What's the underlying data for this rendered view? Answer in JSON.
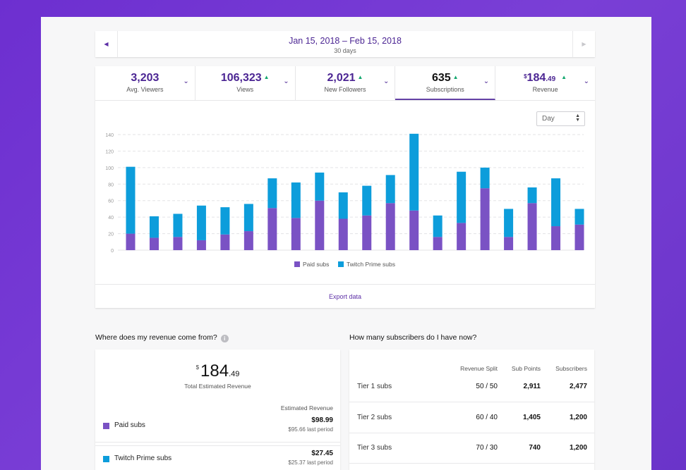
{
  "date_nav": {
    "range": "Jan 15, 2018 – Feb 15, 2018",
    "days": "30 days"
  },
  "metrics": [
    {
      "value": "3,203",
      "label": "Avg. Viewers",
      "up": false
    },
    {
      "value": "106,323",
      "label": "Views",
      "up": true
    },
    {
      "value": "2,021",
      "label": "New Followers",
      "up": true
    },
    {
      "value": "635",
      "label": "Subscriptions",
      "up": true
    },
    {
      "currency": "$",
      "value": "184",
      "cents": ".49",
      "label": "Revenue",
      "up": true
    }
  ],
  "granularity": "Day",
  "chart_data": {
    "type": "bar",
    "stacked": true,
    "ylim": [
      0,
      140
    ],
    "yticks": [
      0,
      20,
      40,
      60,
      80,
      100,
      120,
      140
    ],
    "series": [
      {
        "name": "Paid subs",
        "color": "#7a52c4",
        "values": [
          20,
          15,
          16,
          12,
          19,
          23,
          51,
          39,
          60,
          38,
          42,
          57,
          48,
          16,
          33,
          75,
          16,
          57,
          29,
          31
        ]
      },
      {
        "name": "Twitch Prime subs",
        "color": "#0d9ddb",
        "values": [
          81,
          26,
          28,
          42,
          33,
          33,
          36,
          43,
          34,
          32,
          36,
          34,
          93,
          26,
          62,
          25,
          34,
          19,
          58,
          19
        ]
      }
    ],
    "legend": [
      "Paid subs",
      "Twitch Prime subs"
    ]
  },
  "export_label": "Export data",
  "revenue": {
    "title": "Where does my revenue come from?",
    "currency": "$",
    "total": "184",
    "cents": ".49",
    "total_label": "Total Estimated Revenue",
    "column_header": "Estimated Revenue",
    "rows": [
      {
        "name": "Paid subs",
        "amount": "$98.99",
        "last": "$95.66 last period",
        "color": "#7a52c4"
      },
      {
        "name": "Twitch Prime subs",
        "amount": "$27.45",
        "last": "$25.37 last period",
        "color": "#0d9ddb"
      }
    ]
  },
  "subscribers": {
    "title": "How many subscribers do I have now?",
    "headers": {
      "split": "Revenue Split",
      "points": "Sub Points",
      "subs": "Subscribers"
    },
    "rows": [
      {
        "tier": "Tier 1 subs",
        "split": "50 / 50",
        "points": "2,911",
        "subs": "2,477"
      },
      {
        "tier": "Tier 2 subs",
        "split": "60 / 40",
        "points": "1,405",
        "subs": "1,200"
      },
      {
        "tier": "Tier 3 subs",
        "split": "70 / 30",
        "points": "740",
        "subs": "1,200"
      }
    ]
  }
}
